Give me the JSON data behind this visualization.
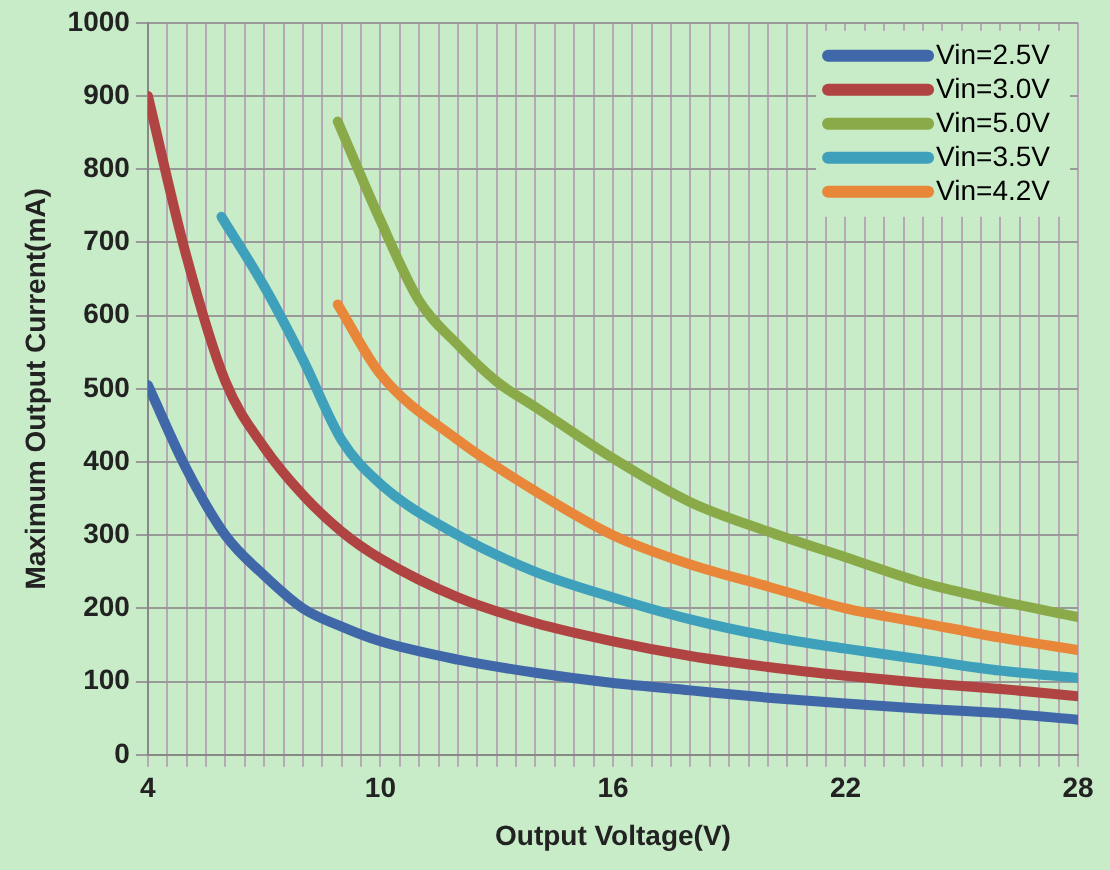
{
  "chart_data": {
    "type": "line",
    "xlabel": "Output Voltage(V)",
    "ylabel": "Maximum Output Current(mA)",
    "xlim": [
      4,
      28
    ],
    "ylim": [
      0,
      1000
    ],
    "xticks": [
      4,
      {
        "value": 4.5,
        "label": null
      },
      {
        "value": 5,
        "label": null
      },
      {
        "value": 5.5,
        "label": null
      },
      {
        "value": 6,
        "label": null
      },
      {
        "value": 6.5,
        "label": null
      },
      {
        "value": 7,
        "label": null
      },
      {
        "value": 7.5,
        "label": null
      },
      {
        "value": 8,
        "label": null
      },
      {
        "value": 8.5,
        "label": null
      },
      {
        "value": 9,
        "label": null
      },
      {
        "value": 9.5,
        "label": null
      },
      10,
      {
        "value": 10.5,
        "label": null
      },
      {
        "value": 11,
        "label": null
      },
      {
        "value": 11.5,
        "label": null
      },
      {
        "value": 12,
        "label": null
      },
      {
        "value": 12.5,
        "label": null
      },
      {
        "value": 13,
        "label": null
      },
      {
        "value": 13.5,
        "label": null
      },
      {
        "value": 14,
        "label": null
      },
      {
        "value": 14.5,
        "label": null
      },
      {
        "value": 15,
        "label": null
      },
      {
        "value": 15.5,
        "label": null
      },
      16,
      {
        "value": 16.5,
        "label": null
      },
      {
        "value": 17,
        "label": null
      },
      {
        "value": 17.5,
        "label": null
      },
      {
        "value": 18,
        "label": null
      },
      {
        "value": 18.5,
        "label": null
      },
      {
        "value": 19,
        "label": null
      },
      {
        "value": 19.5,
        "label": null
      },
      {
        "value": 20,
        "label": null
      },
      {
        "value": 20.5,
        "label": null
      },
      {
        "value": 21,
        "label": null
      },
      {
        "value": 21.5,
        "label": null
      },
      22,
      {
        "value": 22.5,
        "label": null
      },
      {
        "value": 23,
        "label": null
      },
      {
        "value": 23.5,
        "label": null
      },
      {
        "value": 24,
        "label": null
      },
      {
        "value": 24.5,
        "label": null
      },
      {
        "value": 25,
        "label": null
      },
      {
        "value": 25.5,
        "label": null
      },
      {
        "value": 26,
        "label": null
      },
      {
        "value": 26.5,
        "label": null
      },
      {
        "value": 27,
        "label": null
      },
      {
        "value": 27.5,
        "label": null
      },
      28
    ],
    "yticks": [
      0,
      100,
      200,
      300,
      400,
      500,
      600,
      700,
      800,
      900,
      1000
    ],
    "grid": true,
    "legend": "top right",
    "marker": "none",
    "line_style": "solid",
    "series": [
      {
        "name": "Vin=2.5V",
        "color": "#4068a8",
        "x": [
          4,
          5,
          6,
          7,
          8,
          9,
          10,
          12,
          14,
          16,
          18,
          20,
          22,
          24,
          26,
          28
        ],
        "values": [
          505,
          390,
          300,
          245,
          200,
          175,
          155,
          130,
          112,
          98,
          88,
          78,
          70,
          63,
          57,
          48
        ]
      },
      {
        "name": "Vin=3.0V",
        "color": "#b04442",
        "x": [
          4,
          5,
          6,
          7,
          8,
          9,
          10,
          12,
          14,
          16,
          18,
          20,
          22,
          24,
          26,
          28
        ],
        "values": [
          900,
          680,
          510,
          420,
          355,
          305,
          268,
          215,
          180,
          155,
          135,
          120,
          108,
          98,
          90,
          80
        ]
      },
      {
        "name": "Vin=5.0V",
        "color": "#8aaa4a",
        "x": [
          8.9,
          10,
          11,
          12,
          13,
          14,
          16,
          18,
          20,
          22,
          24,
          26,
          28
        ],
        "values": [
          865,
          730,
          620,
          560,
          510,
          475,
          405,
          345,
          305,
          270,
          235,
          210,
          188
        ]
      },
      {
        "name": "Vin=3.5V",
        "color": "#3fa0bc",
        "x": [
          5.9,
          7,
          8,
          9,
          10,
          12,
          14,
          16,
          18,
          20,
          22,
          24,
          26,
          28
        ],
        "values": [
          735,
          640,
          540,
          430,
          370,
          300,
          250,
          215,
          185,
          162,
          145,
          130,
          115,
          105
        ]
      },
      {
        "name": "Vin=4.2V",
        "color": "#e8873a",
        "x": [
          8.9,
          10,
          12,
          14,
          16,
          18,
          20,
          22,
          24,
          26,
          28
        ],
        "values": [
          615,
          520,
          430,
          360,
          300,
          260,
          230,
          200,
          180,
          160,
          143
        ]
      }
    ]
  }
}
